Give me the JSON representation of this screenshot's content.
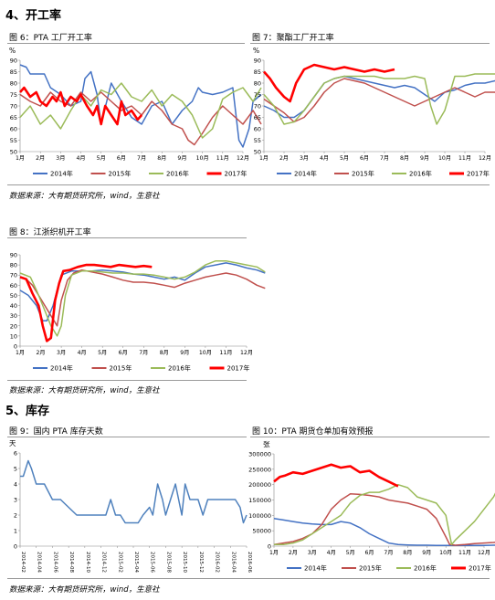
{
  "sections": {
    "s4": "4、开工率",
    "s5": "5、库存"
  },
  "figures": {
    "f6": "图 6：PTA 工厂开工率",
    "f7": "图 7：聚酯工厂开工率",
    "f8": "图 8：江浙织机开工率",
    "f9": "图 9：国内 PTA 库存天数",
    "f10": "图 10：PTA 期货仓单加有效预报"
  },
  "sources": {
    "s1": "数据来源：大有期货研究所，wind，生意社",
    "s2": "数据来源：大有期货研究所，wind，生意社",
    "s3": "数据来源：大有期货研究所，wind，生意社"
  },
  "colors": {
    "y2014": "#4472c4",
    "y2015": "#c0504d",
    "y2016": "#9bbb59",
    "y2017": "#ff0000",
    "inventory": "#4f81bd"
  },
  "chart_data": [
    {
      "id": "pta",
      "type": "line",
      "ylabel": "%",
      "ylim": [
        50,
        90
      ],
      "yticks": [
        50,
        55,
        60,
        65,
        70,
        75,
        80,
        85,
        90
      ],
      "categories": [
        "1月",
        "2月",
        "3月",
        "4月",
        "5月",
        "6月",
        "7月",
        "8月",
        "9月",
        "10月",
        "11月",
        "12月"
      ],
      "legend": [
        "2014年",
        "2015年",
        "2016年",
        "2017年"
      ],
      "series": [
        {
          "name": "2014年",
          "x": [
            0,
            0.3,
            0.5,
            1.2,
            1.5,
            2.0,
            2.5,
            3.0,
            3.2,
            3.5,
            3.8,
            4.0,
            4.5,
            5.0,
            5.5,
            6.0,
            6.5,
            7.0,
            7.5,
            8.0,
            8.5,
            8.8,
            9.0,
            9.5,
            10.0,
            10.5,
            10.8,
            11.0,
            11.3,
            11.5,
            11.9
          ],
          "y": [
            88,
            87,
            84,
            84,
            78,
            75,
            70,
            72,
            82,
            85,
            75,
            62,
            80,
            72,
            65,
            62,
            70,
            72,
            62,
            68,
            72,
            78,
            76,
            75,
            76,
            78,
            55,
            52,
            60,
            72,
            75
          ]
        },
        {
          "name": "2015年",
          "x": [
            0,
            0.5,
            1.0,
            1.5,
            2.0,
            2.5,
            3.0,
            3.5,
            4.0,
            4.5,
            5.0,
            5.5,
            6.0,
            6.5,
            7.0,
            7.5,
            8.0,
            8.3,
            8.6,
            9.0,
            9.5,
            10.0,
            10.5,
            11.0,
            11.5,
            11.9
          ],
          "y": [
            75,
            72,
            70,
            76,
            72,
            70,
            76,
            72,
            76,
            72,
            68,
            70,
            66,
            72,
            68,
            62,
            60,
            55,
            53,
            58,
            65,
            70,
            66,
            62,
            68,
            62
          ]
        },
        {
          "name": "2016年",
          "x": [
            0,
            0.5,
            1.0,
            1.5,
            2.0,
            2.5,
            3.0,
            3.5,
            4.0,
            4.5,
            5.0,
            5.5,
            6.0,
            6.5,
            7.0,
            7.5,
            8.0,
            8.5,
            9.0,
            9.5,
            10.0,
            10.5,
            11.0,
            11.5,
            11.9
          ],
          "y": [
            65,
            70,
            62,
            66,
            60,
            68,
            75,
            70,
            77,
            75,
            80,
            74,
            72,
            77,
            70,
            75,
            72,
            66,
            56,
            60,
            73,
            76,
            78,
            72,
            78
          ]
        },
        {
          "name": "2017年",
          "x": [
            0,
            0.2,
            0.5,
            0.8,
            1.0,
            1.3,
            1.6,
            1.8,
            2.0,
            2.2,
            2.5,
            2.8,
            3.0,
            3.3,
            3.6,
            3.8,
            4.0,
            4.2,
            4.5,
            4.8,
            5.0,
            5.2,
            5.5,
            5.8,
            6.0
          ],
          "y": [
            76,
            78,
            74,
            76,
            72,
            70,
            74,
            72,
            76,
            70,
            74,
            72,
            75,
            70,
            66,
            70,
            62,
            70,
            66,
            62,
            72,
            66,
            68,
            64,
            66
          ]
        }
      ]
    },
    {
      "id": "polyester",
      "type": "line",
      "ylabel": "%",
      "ylim": [
        50,
        90
      ],
      "yticks": [
        50,
        55,
        60,
        65,
        70,
        75,
        80,
        85,
        90
      ],
      "categories": [
        "1月",
        "2月",
        "3月",
        "4月",
        "5月",
        "6月",
        "7月",
        "8月",
        "9月",
        "10月",
        "11月",
        "12月"
      ],
      "legend": [
        "2014年",
        "2015年",
        "2016年",
        "2017年"
      ],
      "series": [
        {
          "name": "2014年",
          "x": [
            0,
            0.5,
            1.0,
            1.5,
            2.0,
            2.5,
            3.0,
            3.5,
            4.0,
            4.5,
            5.0,
            5.5,
            6.0,
            6.5,
            7.0,
            7.5,
            8.0,
            8.5,
            9.0,
            9.5,
            10.0,
            10.5,
            11.0,
            11.5,
            11.9
          ],
          "y": [
            70,
            68,
            65,
            65,
            68,
            74,
            80,
            82,
            83,
            82,
            81,
            80,
            79,
            78,
            79,
            78,
            75,
            72,
            76,
            77,
            79,
            80,
            80,
            81,
            81
          ]
        },
        {
          "name": "2015年",
          "x": [
            0,
            0.5,
            1.0,
            1.5,
            2.0,
            2.5,
            3.0,
            3.5,
            4.0,
            4.5,
            5.0,
            5.5,
            6.0,
            6.5,
            7.0,
            7.5,
            8.0,
            8.5,
            9.0,
            9.5,
            10.0,
            10.5,
            11.0,
            11.5,
            11.9
          ],
          "y": [
            73,
            70,
            67,
            63,
            65,
            70,
            76,
            80,
            82,
            81,
            80,
            78,
            76,
            74,
            72,
            70,
            72,
            74,
            76,
            78,
            76,
            74,
            76,
            76,
            73
          ]
        },
        {
          "name": "2016年",
          "x": [
            0,
            0.5,
            1.0,
            1.5,
            2.0,
            2.5,
            3.0,
            3.5,
            4.0,
            4.5,
            5.0,
            5.5,
            6.0,
            6.5,
            7.0,
            7.5,
            8.0,
            8.3,
            8.6,
            9.0,
            9.5,
            10.0,
            10.5,
            11.0,
            11.5,
            11.9
          ],
          "y": [
            75,
            70,
            62,
            63,
            68,
            74,
            80,
            82,
            83,
            83,
            83,
            83,
            82,
            82,
            82,
            83,
            82,
            70,
            62,
            68,
            83,
            83,
            84,
            84,
            84,
            83
          ]
        },
        {
          "name": "2017年",
          "x": [
            0,
            0.3,
            0.6,
            1.0,
            1.3,
            1.6,
            2.0,
            2.5,
            3.0,
            3.5,
            4.0,
            4.5,
            5.0,
            5.5,
            6.0,
            6.5
          ],
          "y": [
            85,
            82,
            78,
            74,
            72,
            80,
            86,
            88,
            87,
            86,
            87,
            86,
            85,
            86,
            85,
            86
          ]
        }
      ]
    },
    {
      "id": "looms",
      "type": "line",
      "ylim": [
        0,
        90
      ],
      "yticks": [
        0,
        10,
        20,
        30,
        40,
        50,
        60,
        70,
        80,
        90
      ],
      "categories": [
        "1月",
        "2月",
        "3月",
        "4月",
        "5月",
        "6月",
        "7月",
        "8月",
        "9月",
        "10月",
        "11月",
        "12月"
      ],
      "legend": [
        "2014年",
        "2015年",
        "2016年",
        "2017年"
      ],
      "series": [
        {
          "name": "2014年",
          "x": [
            0,
            0.4,
            0.8,
            1.1,
            1.3,
            1.6,
            2.0,
            2.5,
            3.0,
            3.5,
            4.0,
            4.5,
            5.0,
            5.5,
            6.0,
            6.5,
            7.0,
            7.5,
            8.0,
            8.5,
            9.0,
            9.5,
            10.0,
            10.5,
            11.0,
            11.5,
            11.9
          ],
          "y": [
            55,
            50,
            40,
            25,
            25,
            40,
            70,
            74,
            74,
            74,
            75,
            74,
            73,
            71,
            70,
            68,
            66,
            68,
            65,
            72,
            78,
            80,
            82,
            80,
            77,
            75,
            72
          ]
        },
        {
          "name": "2015年",
          "x": [
            0,
            0.3,
            0.6,
            0.9,
            1.2,
            1.5,
            1.8,
            2.0,
            2.3,
            2.6,
            3.0,
            3.5,
            4.0,
            4.5,
            5.0,
            5.5,
            6.0,
            6.5,
            7.0,
            7.5,
            8.0,
            8.5,
            9.0,
            9.5,
            10.0,
            10.5,
            11.0,
            11.5,
            11.9
          ],
          "y": [
            68,
            66,
            60,
            50,
            40,
            30,
            20,
            45,
            65,
            72,
            75,
            73,
            71,
            68,
            65,
            63,
            63,
            62,
            60,
            58,
            62,
            65,
            68,
            70,
            72,
            70,
            66,
            60,
            57
          ]
        },
        {
          "name": "2016年",
          "x": [
            0,
            0.5,
            0.8,
            1.2,
            1.5,
            1.8,
            2.0,
            2.2,
            2.5,
            3.0,
            3.5,
            4.0,
            4.5,
            5.0,
            5.5,
            6.0,
            6.5,
            7.0,
            7.5,
            8.0,
            8.5,
            9.0,
            9.5,
            10.0,
            10.5,
            11.0,
            11.5,
            11.9
          ],
          "y": [
            72,
            68,
            55,
            35,
            20,
            10,
            20,
            50,
            70,
            74,
            74,
            73,
            72,
            72,
            71,
            71,
            70,
            68,
            66,
            68,
            73,
            80,
            84,
            84,
            82,
            80,
            78,
            73
          ]
        },
        {
          "name": "2017年",
          "x": [
            0,
            0.3,
            0.6,
            0.9,
            1.1,
            1.3,
            1.5,
            1.7,
            1.9,
            2.1,
            2.4,
            2.8,
            3.2,
            3.6,
            4.0,
            4.4,
            4.8,
            5.2,
            5.6,
            6.0,
            6.4
          ],
          "y": [
            68,
            66,
            52,
            40,
            20,
            5,
            8,
            45,
            62,
            74,
            75,
            78,
            80,
            80,
            79,
            78,
            80,
            79,
            78,
            79,
            78
          ]
        }
      ]
    },
    {
      "id": "inventory",
      "type": "line",
      "ylabel": "天",
      "ylim": [
        0,
        6
      ],
      "yticks": [
        0,
        1,
        2,
        3,
        4,
        5,
        6
      ],
      "categories": [
        "2014-02",
        "2014-04",
        "2014-06",
        "2014-08",
        "2014-10",
        "2014-12",
        "2015-02",
        "2015-04",
        "2015-06",
        "2015-08",
        "2015-10",
        "2015-12",
        "2016-02",
        "2016-04",
        "2016-06"
      ],
      "series": [
        {
          "name": "",
          "x": [
            0,
            0.2,
            0.5,
            0.7,
            1.0,
            1.5,
            2.0,
            2.5,
            3.0,
            3.5,
            4.0,
            4.5,
            5.0,
            5.3,
            5.6,
            5.9,
            6.2,
            6.5,
            7.0,
            7.3,
            7.6,
            8.0,
            8.2,
            8.5,
            8.8,
            9.0,
            9.3,
            9.6,
            10.0,
            10.2,
            10.5,
            11.0,
            11.3,
            11.6,
            12.0,
            12.5,
            13.0,
            13.3,
            13.6,
            13.8,
            14.0
          ],
          "y": [
            4.5,
            4.5,
            5.5,
            5.0,
            4.0,
            4.0,
            3.0,
            3.0,
            2.5,
            2.0,
            2.0,
            2.0,
            2.0,
            2.0,
            3.0,
            2.0,
            2.0,
            1.5,
            1.5,
            1.5,
            2.0,
            2.5,
            2.0,
            4.0,
            3.0,
            2.0,
            3.0,
            4.0,
            2.0,
            4.0,
            3.0,
            3.0,
            2.0,
            3.0,
            3.0,
            3.0,
            3.0,
            3.0,
            2.5,
            1.5,
            2.0
          ]
        }
      ]
    },
    {
      "id": "warrants",
      "type": "line",
      "ylabel": "张",
      "ylim": [
        0,
        300000
      ],
      "yticks": [
        0,
        50000,
        100000,
        150000,
        200000,
        250000,
        300000
      ],
      "categories": [
        "1月",
        "2月",
        "3月",
        "4月",
        "5月",
        "6月",
        "7月",
        "8月",
        "9月",
        "10月",
        "11月",
        "12月"
      ],
      "legend": [
        "2014年",
        "2015年",
        "2016年",
        "2017年"
      ],
      "series": [
        {
          "name": "2014年",
          "x": [
            0,
            0.5,
            1.0,
            1.5,
            2.0,
            2.5,
            3.0,
            3.5,
            4.0,
            4.5,
            5.0,
            5.5,
            6.0,
            6.5,
            7.0,
            7.5,
            8.0,
            8.5,
            9.0,
            9.5,
            10.0,
            10.5,
            11.0,
            11.5,
            11.9
          ],
          "y": [
            90000,
            85000,
            80000,
            75000,
            72000,
            70000,
            70000,
            80000,
            75000,
            60000,
            40000,
            25000,
            10000,
            5000,
            4000,
            3000,
            3000,
            2000,
            2000,
            2000,
            2000,
            2000,
            2000,
            3000,
            3000
          ]
        },
        {
          "name": "2015年",
          "x": [
            0,
            0.5,
            1.0,
            1.5,
            2.0,
            2.5,
            3.0,
            3.5,
            4.0,
            4.5,
            5.0,
            5.5,
            6.0,
            6.5,
            7.0,
            7.5,
            8.0,
            8.5,
            9.0,
            9.2,
            9.5,
            10.0,
            10.5,
            11.0,
            11.5,
            11.9
          ],
          "y": [
            5000,
            10000,
            15000,
            25000,
            40000,
            70000,
            120000,
            150000,
            170000,
            168000,
            165000,
            160000,
            150000,
            145000,
            140000,
            130000,
            120000,
            90000,
            30000,
            5000,
            3000,
            5000,
            8000,
            10000,
            12000,
            15000
          ]
        },
        {
          "name": "2016年",
          "x": [
            0,
            0.5,
            1.0,
            1.5,
            2.0,
            2.5,
            3.0,
            3.5,
            4.0,
            4.5,
            5.0,
            5.5,
            6.0,
            6.5,
            7.0,
            7.5,
            8.0,
            8.5,
            9.0,
            9.3,
            9.5,
            10.0,
            10.5,
            11.0,
            11.5,
            11.9
          ],
          "y": [
            5000,
            5000,
            10000,
            20000,
            40000,
            60000,
            80000,
            100000,
            140000,
            165000,
            175000,
            175000,
            185000,
            200000,
            190000,
            160000,
            150000,
            140000,
            100000,
            5000,
            20000,
            50000,
            80000,
            120000,
            160000,
            210000
          ]
        },
        {
          "name": "2017年",
          "x": [
            0,
            0.3,
            0.6,
            1.0,
            1.5,
            2.0,
            2.5,
            3.0,
            3.5,
            4.0,
            4.5,
            5.0,
            5.5,
            6.0,
            6.5
          ],
          "y": [
            210000,
            225000,
            230000,
            240000,
            235000,
            245000,
            255000,
            265000,
            255000,
            260000,
            240000,
            245000,
            225000,
            210000,
            195000
          ]
        }
      ]
    }
  ]
}
